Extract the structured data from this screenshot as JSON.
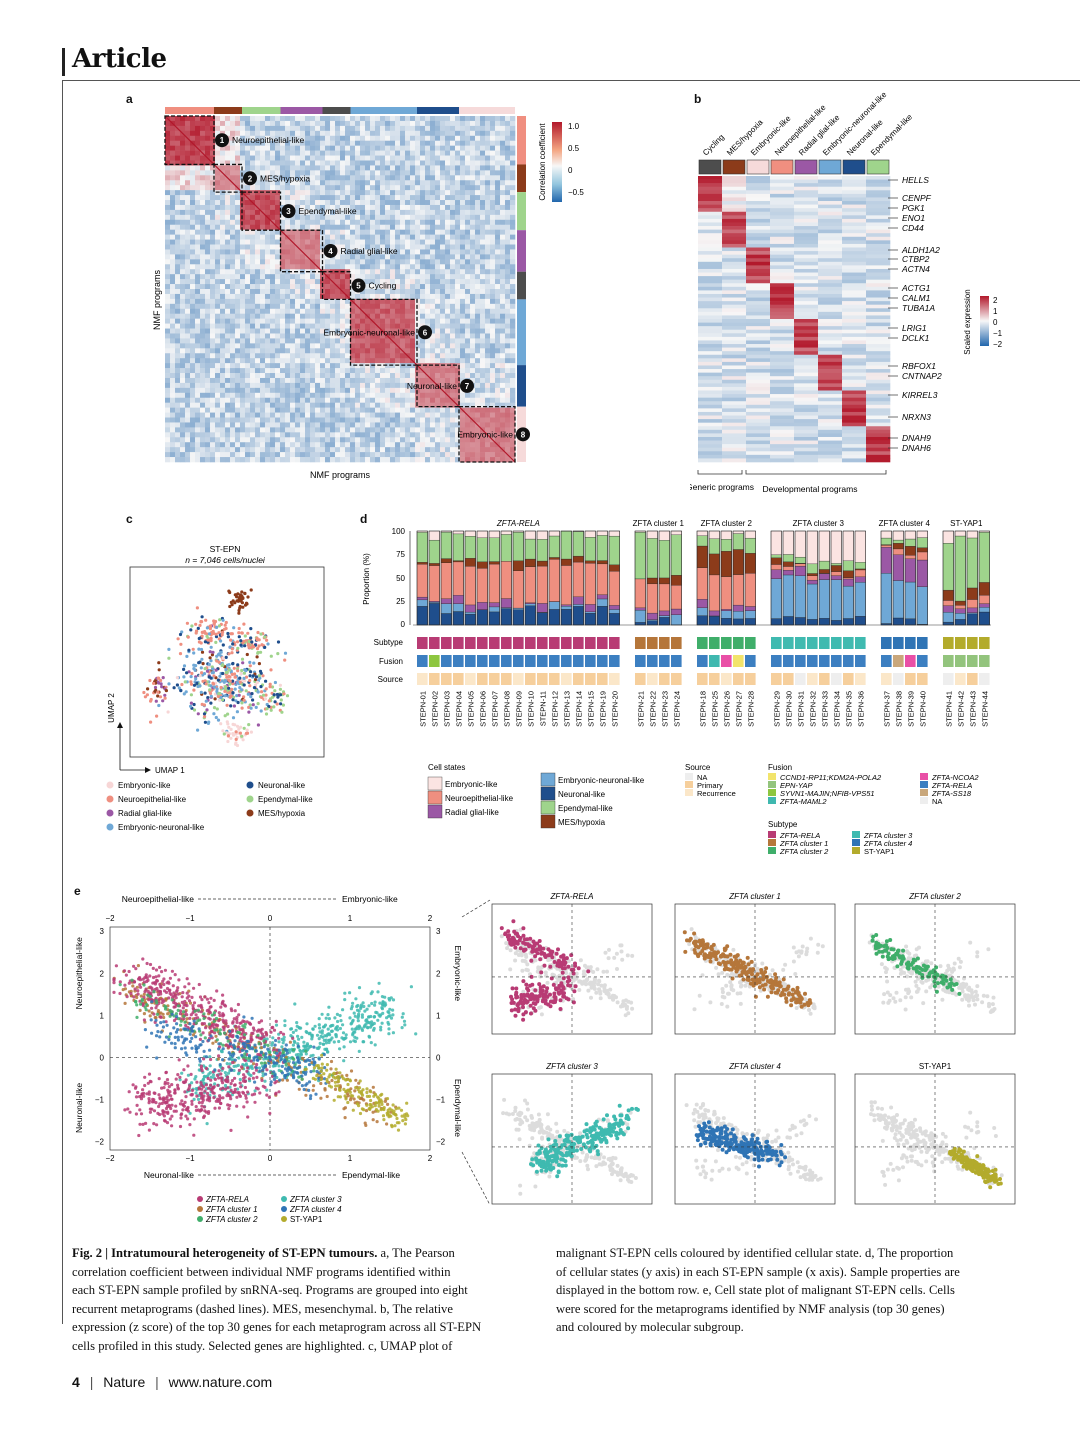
{
  "header": {
    "section": "Article"
  },
  "panel_labels": [
    "a",
    "b",
    "c",
    "d",
    "e"
  ],
  "panel_a": {
    "axis_x": "NMF programs",
    "axis_y": "NMF programs",
    "colorbar_title": "Correlation coefficient",
    "colorbar_ticks": [
      "1.0",
      "0.5",
      "0",
      "−0.5"
    ],
    "colors": {
      "high": "#b2182b",
      "mid": "#f7f7f7",
      "low": "#2166ac"
    },
    "metaprograms": [
      {
        "n": "1",
        "label": "Neuroepithelial-like"
      },
      {
        "n": "2",
        "label": "MES/hypoxia"
      },
      {
        "n": "3",
        "label": "Ependymal-like"
      },
      {
        "n": "4",
        "label": "Radial glial-like"
      },
      {
        "n": "5",
        "label": "Cycling"
      },
      {
        "n": "6",
        "label": "Embryonic-neuronal-like"
      },
      {
        "n": "7",
        "label": "Neuronal-like"
      },
      {
        "n": "8",
        "label": "Embryonic-like"
      }
    ]
  },
  "panel_b": {
    "columns": [
      "Cycling",
      "MES/hypoxia",
      "Embryonic-like",
      "Neuroepithelial-like",
      "Radial glial-like",
      "Embryonic-neuronal-like",
      "Neuronal-like",
      "Ependymal-like"
    ],
    "column_colors": [
      "#4d4d4d",
      "#8c3b1a",
      "#f6dada",
      "#f08f80",
      "#9b58a5",
      "#6fa8d6",
      "#1f4e8c",
      "#9fd48c"
    ],
    "genes": [
      "HELLS",
      "CENPF",
      "PGK1",
      "ENO1",
      "CD44",
      "ALDH1A2",
      "CTBP2",
      "ACTN4",
      "ACTG1",
      "CALM1",
      "TUBA1A",
      "LRIG1",
      "DCLK1",
      "RBFOX1",
      "CNTNAP2",
      "KIRREL3",
      "NRXN3",
      "DNAH9",
      "DNAH6"
    ],
    "group_generic": "Generic programs",
    "group_dev": "Developmental programs",
    "colorbar_title": "Scaled expression",
    "colorbar_ticks": [
      "2",
      "1",
      "0",
      "−1",
      "−2"
    ]
  },
  "panel_c": {
    "title": "ST-EPN",
    "subtitle": "n = 7,046 cells/nuclei",
    "xlabel": "UMAP 1",
    "ylabel": "UMAP 2",
    "legend": [
      {
        "label": "Embryonic-like",
        "color": "#f7d6d6"
      },
      {
        "label": "Neuroepithelial-like",
        "color": "#ef8f80"
      },
      {
        "label": "Radial glial-like",
        "color": "#9b58a5"
      },
      {
        "label": "Embryonic-neuronal-like",
        "color": "#6fa8d6"
      },
      {
        "label": "Neuronal-like",
        "color": "#1f4e8c"
      },
      {
        "label": "Ependymal-like",
        "color": "#9fd48c"
      },
      {
        "label": "MES/hypoxia",
        "color": "#8c3b1a"
      }
    ]
  },
  "panel_d": {
    "ylabel": "Proportion (%)",
    "yticks": [
      "100",
      "75",
      "50",
      "25",
      "0"
    ],
    "row_labels": [
      "Subtype",
      "Fusion",
      "Source"
    ],
    "groups": [
      {
        "name": "ZFTA-RELA",
        "italic": true,
        "samples": [
          "STEPN-01",
          "STEPN-02",
          "STEPN-03",
          "STEPN-04",
          "STEPN-05",
          "STEPN-06",
          "STEPN-07",
          "STEPN-08",
          "STEPN-09",
          "STEPN-10",
          "STEPN-11",
          "STEPN-12",
          "STEPN-13",
          "STEPN-14",
          "STEPN-15",
          "STEPN-19",
          "STEPN-20"
        ]
      },
      {
        "name": "ZFTA cluster 1",
        "italic": false,
        "samples": [
          "STEPN-21",
          "STEPN-22",
          "STEPN-23",
          "STEPN-24"
        ]
      },
      {
        "name": "ZFTA cluster 2",
        "italic": false,
        "samples": [
          "STEPN-18",
          "STEPN-25",
          "STEPN-26",
          "STEPN-27",
          "STEPN-28"
        ]
      },
      {
        "name": "ZFTA cluster 3",
        "italic": false,
        "samples": [
          "STEPN-29",
          "STEPN-30",
          "STEPN-31",
          "STEPN-32",
          "STEPN-33",
          "STEPN-34",
          "STEPN-35",
          "STEPN-36"
        ]
      },
      {
        "name": "ZFTA cluster 4",
        "italic": false,
        "samples": [
          "STEPN-37",
          "STEPN-38",
          "STEPN-39",
          "STEPN-40"
        ]
      },
      {
        "name": "ST-YAP1",
        "italic": false,
        "samples": [
          "STEPN-41",
          "STEPN-42",
          "STEPN-43",
          "STEPN-44"
        ]
      }
    ],
    "legend_cell_states_title": "Cell states",
    "legend_cell_states": [
      {
        "label": "Embryonic-like",
        "color": "#fbe4e2"
      },
      {
        "label": "Neuroepithelial-like",
        "color": "#ef8f80"
      },
      {
        "label": "Radial glial-like",
        "color": "#9b58a5"
      },
      {
        "label": "Embryonic-neuronal-like",
        "color": "#6fa8d6"
      },
      {
        "label": "Neuronal-like",
        "color": "#1f4e8c"
      },
      {
        "label": "Ependymal-like",
        "color": "#9fd48c"
      },
      {
        "label": "MES/hypoxia",
        "color": "#8c3b1a"
      }
    ],
    "legend_source_title": "Source",
    "legend_source": [
      {
        "label": "NA",
        "color": "#eeeeee"
      },
      {
        "label": "Primary",
        "color": "#f6cf9c"
      },
      {
        "label": "Recurrence",
        "color": "#fbe7c9"
      }
    ],
    "legend_fusion_title": "Fusion",
    "legend_fusion": [
      {
        "label": "CCND1-RP11;KDM2A-POLA2",
        "color": "#f2e46b"
      },
      {
        "label": "EPN-YAP",
        "color": "#93c47d"
      },
      {
        "label": "SYVN1-MAJIN;NFIB-VPS51",
        "color": "#8dc63f"
      },
      {
        "label": "ZFTA-MAML2",
        "color": "#3fb8af"
      },
      {
        "label": "ZFTA-NCOA2",
        "color": "#e94fa6"
      },
      {
        "label": "ZFTA-RELA",
        "color": "#3c7fc1"
      },
      {
        "label": "ZFTA-SS18",
        "color": "#c9a77b"
      },
      {
        "label": "NA",
        "color": "#eeeeee"
      }
    ],
    "legend_subtype_title": "Subtype",
    "legend_subtype": [
      {
        "label": "ZFTA-RELA",
        "color": "#b83b74"
      },
      {
        "label": "ZFTA cluster 1",
        "color": "#b5763a"
      },
      {
        "label": "ZFTA cluster 2",
        "color": "#3fae6a"
      },
      {
        "label": "ZFTA cluster 3",
        "color": "#3fbab0"
      },
      {
        "label": "ZFTA cluster 4",
        "color": "#2f74b5"
      },
      {
        "label": "ST-YAP1",
        "color": "#b3ab2c"
      }
    ]
  },
  "panel_e": {
    "top_axis_left": "Neuroepithelial-like",
    "top_axis_right": "Embryonic-like",
    "bottom_axis_left": "Neuronal-like",
    "bottom_axis_right": "Ependymal-like",
    "left_axis_top": "Neuroepithelial-like",
    "left_axis_bottom": "Neuronal-like",
    "right_axis_top": "Embryonic-like",
    "right_axis_bottom": "Ependymal-like",
    "xticks": [
      "−2",
      "−1",
      "0",
      "1",
      "2"
    ],
    "yticks": [
      "3",
      "2",
      "1",
      "0",
      "−1",
      "−2"
    ],
    "legend": [
      {
        "label": "ZFTA-RELA",
        "color": "#b83b74"
      },
      {
        "label": "ZFTA cluster 1",
        "color": "#b5763a"
      },
      {
        "label": "ZFTA cluster 2",
        "color": "#3fae6a"
      },
      {
        "label": "ZFTA cluster 3",
        "color": "#3fbab0"
      },
      {
        "label": "ZFTA cluster 4",
        "color": "#2f74b5"
      },
      {
        "label": "ST-YAP1",
        "color": "#b3ab2c"
      }
    ],
    "small_panels": [
      {
        "title": "ZFTA-RELA",
        "color": "#b83b74"
      },
      {
        "title": "ZFTA cluster 1",
        "color": "#b5763a"
      },
      {
        "title": "ZFTA cluster 2",
        "color": "#3fae6a"
      },
      {
        "title": "ZFTA cluster 3",
        "color": "#3fbab0"
      },
      {
        "title": "ZFTA cluster 4",
        "color": "#2f74b5"
      },
      {
        "title": "ST-YAP1",
        "color": "#b3ab2c"
      }
    ]
  },
  "caption": {
    "fig": "Fig. 2 | Intratumoural heterogeneity of ST-EPN tumours.",
    "left": [
      "correlation coefficient between individual NMF programs identified within",
      "each ST-EPN sample profiled by snRNA-seq. Programs are grouped into eight",
      "recurrent metaprograms (dashed lines). MES, mesenchymal. b, The relative",
      "expression (z score) of the top 30 genes for each metaprogram across all ST-EPN",
      "cells profiled in this study. Selected genes are highlighted. c, UMAP plot of"
    ],
    "first_line_rest": " a, The Pearson",
    "right": [
      "malignant ST-EPN cells coloured by identified cellular state. d, The proportion",
      "of cellular states (y axis) in each ST-EPN sample (x axis). Sample properties are",
      "displayed in the bottom row. e, Cell state plot of malignant ST-EPN cells. Cells",
      "were scored for the metaprograms identified by NMF analysis (top 30 genes)",
      "and coloured by molecular subgroup."
    ]
  },
  "footer": {
    "page": "4",
    "journal": "Nature",
    "url": "www.nature.com",
    "sep": "|"
  }
}
